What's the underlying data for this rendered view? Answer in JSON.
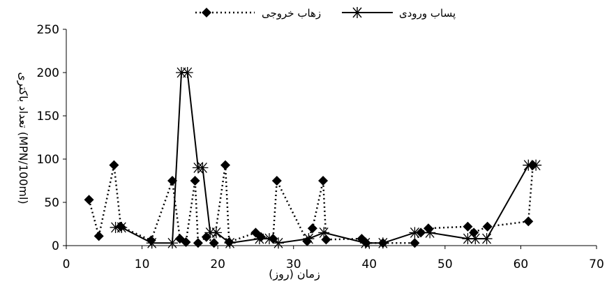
{
  "chart_data": {
    "type": "line",
    "xlabel": "زمان (روز)",
    "ylabel": "تعداد باکتری (MPN/100ml)",
    "xlim": [
      0,
      70
    ],
    "ylim": [
      0,
      250
    ],
    "x_ticks": [
      0,
      10,
      20,
      30,
      40,
      50,
      60,
      70
    ],
    "y_ticks": [
      0,
      50,
      100,
      150,
      200,
      250
    ],
    "grid": false,
    "legend_position": "top-center",
    "series": [
      {
        "name": "زهاب خروجی",
        "color": "#000000",
        "line_style": "dotted",
        "marker": "diamond",
        "x": [
          3,
          4.3,
          6.3,
          7.2,
          11.2,
          14,
          15,
          15.8,
          17,
          17.4,
          18.5,
          19.5,
          21,
          21.5,
          25,
          25.7,
          27.3,
          27.8,
          31.8,
          32.5,
          33.9,
          34.3,
          39,
          39.6,
          41.8,
          46,
          46.8,
          47.8,
          53,
          53.8,
          55.6,
          61,
          61.6
        ],
        "y": [
          53,
          11,
          93,
          22,
          6,
          75,
          8,
          4,
          75,
          3,
          10,
          3,
          93,
          4,
          15,
          10,
          8,
          75,
          5,
          20,
          75,
          7,
          8,
          3,
          3,
          3,
          15,
          20,
          22,
          15,
          22,
          28,
          93
        ]
      },
      {
        "name": "پساب ورودی",
        "color": "#000000",
        "line_style": "solid",
        "marker": "asterisk",
        "x": [
          6.5,
          7.3,
          11.3,
          14,
          15.2,
          16,
          17.4,
          18,
          19,
          19.8,
          21.6,
          25.5,
          26.8,
          28,
          32,
          34,
          39.5,
          41.8,
          46,
          48,
          53,
          54,
          55.5,
          61,
          62
        ],
        "y": [
          21,
          21,
          3,
          3,
          200,
          200,
          90,
          90,
          15,
          15,
          3,
          8,
          8,
          3,
          8,
          15,
          3,
          3,
          15,
          15,
          8,
          8,
          8,
          93,
          93
        ]
      }
    ]
  }
}
